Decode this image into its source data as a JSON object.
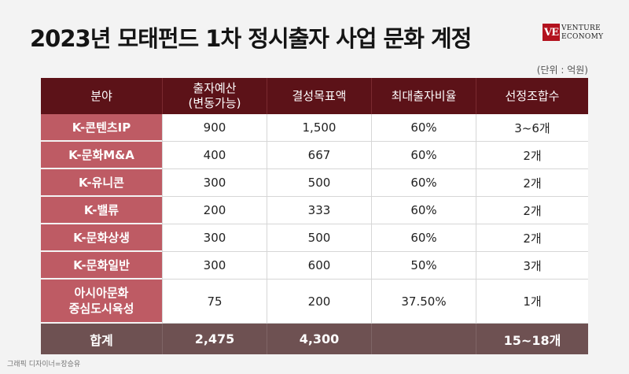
{
  "title": "2023년 모태펀드 1차 정시출자 사업 문화 계정",
  "logo": {
    "mark": "VE",
    "line1": "VENTURE",
    "line2": "ECONOMY"
  },
  "unit": "(단위 : 억원)",
  "table": {
    "headers": [
      "분야",
      "출자예산\n(변동가능)",
      "결성목표액",
      "최대출자비율",
      "선정조합수"
    ],
    "rows": [
      [
        "K-콘텐츠IP",
        "900",
        "1,500",
        "60%",
        "3~6개"
      ],
      [
        "K-문화M&A",
        "400",
        "667",
        "60%",
        "2개"
      ],
      [
        "K-유니콘",
        "300",
        "500",
        "60%",
        "2개"
      ],
      [
        "K-밸류",
        "200",
        "333",
        "60%",
        "2개"
      ],
      [
        "K-문화상생",
        "300",
        "500",
        "60%",
        "2개"
      ],
      [
        "K-문화일반",
        "300",
        "600",
        "50%",
        "3개"
      ],
      [
        "아시아문화\n중심도시육성",
        "75",
        "200",
        "37.50%",
        "1개"
      ]
    ],
    "total": [
      "합계",
      "2,475",
      "4,300",
      "",
      "15~18개"
    ]
  },
  "credit": "그래픽 디자이너=장승유",
  "colors": {
    "header_bg": "#5c1218",
    "category_bg": "#be5b64",
    "total_bg": "#6e5152",
    "logo_red": "#b3121e"
  }
}
